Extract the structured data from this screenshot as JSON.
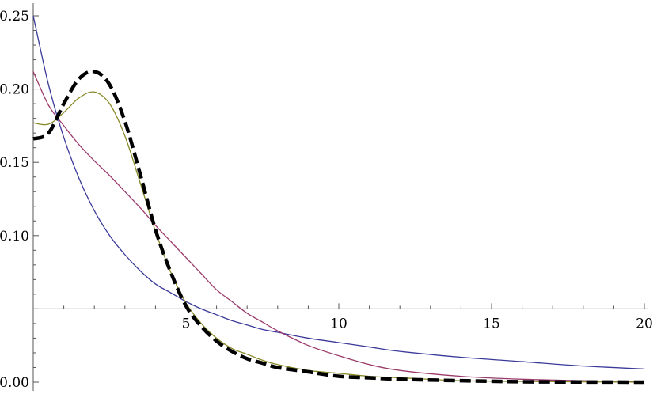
{
  "chart_data": {
    "type": "line",
    "title": "",
    "xlabel": "",
    "ylabel": "",
    "xlim": [
      0,
      20
    ],
    "ylim": [
      0.0,
      0.25
    ],
    "x_axis_crosses_y_at": 0.05,
    "grid": false,
    "legend": "none",
    "x_ticks": [
      {
        "value": 5,
        "label": "5"
      },
      {
        "value": 10,
        "label": "10"
      },
      {
        "value": 15,
        "label": "15"
      },
      {
        "value": 20,
        "label": "20"
      }
    ],
    "y_ticks": [
      {
        "value": 0.0,
        "label": "0.00"
      },
      {
        "value": 0.1,
        "label": "0.10"
      },
      {
        "value": 0.15,
        "label": "0.15"
      },
      {
        "value": 0.2,
        "label": "0.20"
      },
      {
        "value": 0.25,
        "label": "0.25"
      }
    ],
    "x": [
      0,
      0.5,
      1,
      1.5,
      2,
      2.5,
      3,
      3.5,
      4,
      4.5,
      5,
      5.5,
      6,
      6.5,
      7,
      7.5,
      8,
      9,
      10,
      11,
      12,
      14,
      16,
      18,
      20
    ],
    "series": [
      {
        "color": "#3a3a9a",
        "style": "solid",
        "values": [
          0.25,
          0.203,
          0.167,
          0.139,
          0.117,
          0.1,
          0.087,
          0.076,
          0.067,
          0.061,
          0.055,
          0.05,
          0.046,
          0.042,
          0.039,
          0.036,
          0.034,
          0.03,
          0.027,
          0.024,
          0.021,
          0.017,
          0.014,
          0.011,
          0.009
        ]
      },
      {
        "color": "#9a3a6a",
        "style": "solid",
        "values": [
          0.212,
          0.189,
          0.175,
          0.162,
          0.151,
          0.141,
          0.13,
          0.119,
          0.107,
          0.096,
          0.085,
          0.074,
          0.063,
          0.055,
          0.047,
          0.041,
          0.035,
          0.025,
          0.018,
          0.012,
          0.008,
          0.004,
          0.002,
          0.001,
          0.0
        ]
      },
      {
        "color": "#8a8a2a",
        "style": "solid",
        "values": [
          0.177,
          0.176,
          0.184,
          0.194,
          0.198,
          0.19,
          0.168,
          0.136,
          0.103,
          0.075,
          0.054,
          0.04,
          0.03,
          0.023,
          0.019,
          0.015,
          0.012,
          0.008,
          0.006,
          0.004,
          0.003,
          0.001,
          0.0005,
          0.0002,
          0.0
        ]
      },
      {
        "color": "#000000",
        "style": "dashed",
        "values": [
          0.166,
          0.17,
          0.19,
          0.207,
          0.212,
          0.203,
          0.178,
          0.142,
          0.104,
          0.075,
          0.052,
          0.038,
          0.028,
          0.021,
          0.016,
          0.013,
          0.01,
          0.007,
          0.004,
          0.003,
          0.002,
          0.001,
          0.0003,
          0.0001,
          0.0
        ]
      }
    ]
  }
}
